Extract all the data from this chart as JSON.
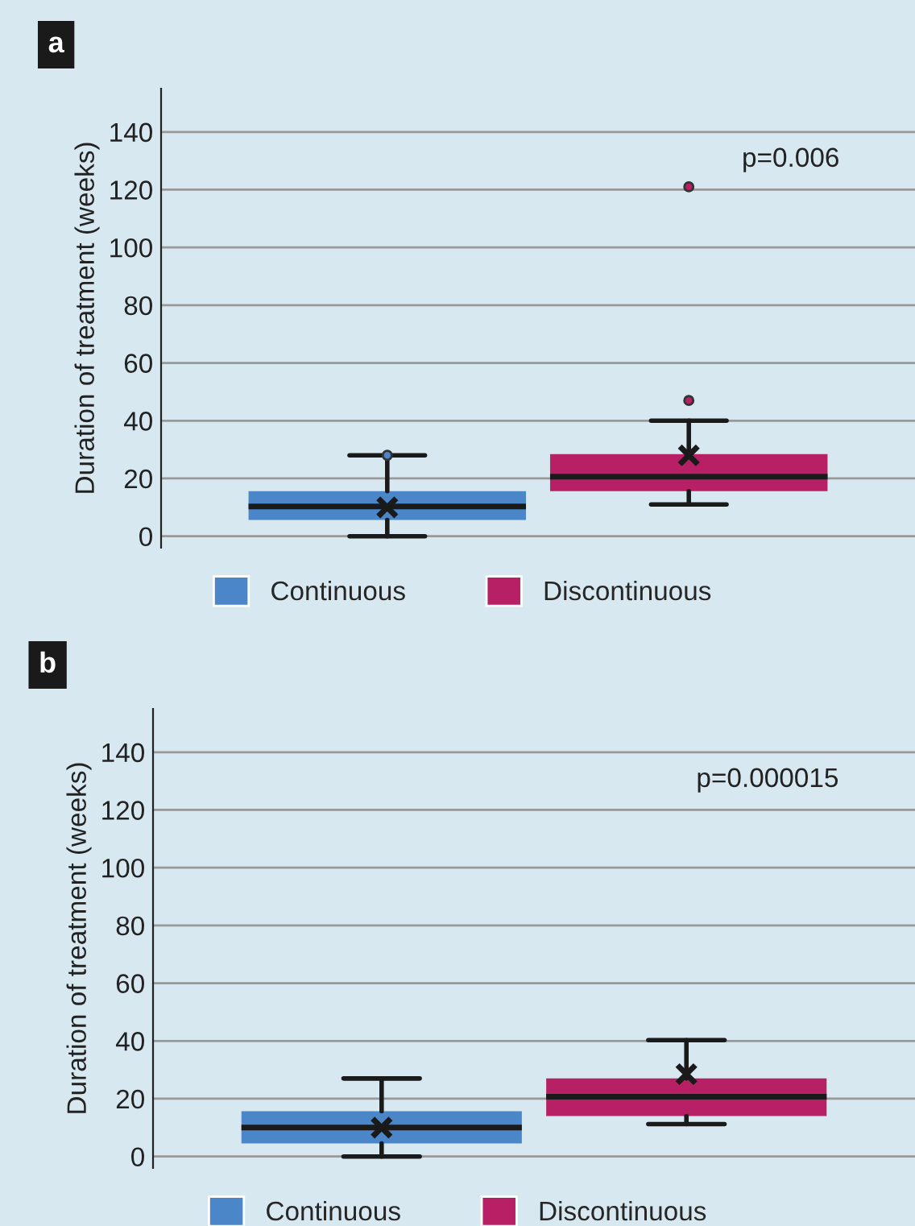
{
  "chart_data": [
    {
      "type": "box",
      "title": "a",
      "ylabel": "Duration of treatment (weeks)",
      "categories": [
        null
      ],
      "series": [
        {
          "name": "Continuous",
          "color": "#4a86c8",
          "boxes": [
            {
              "low": 0,
              "q1": 5.6,
              "median": 10.3,
              "q3": 15.6,
              "high": 28,
              "mean": 10,
              "outliers": [
                28
              ]
            }
          ]
        },
        {
          "name": "Discontinuous",
          "color": "#b72064",
          "boxes": [
            {
              "low": 11,
              "q1": 15.6,
              "median": 20.6,
              "q3": 28.4,
              "high": 40,
              "mean": 28,
              "outliers": [
                47,
                121
              ]
            }
          ]
        }
      ],
      "ylim": [
        -4,
        155
      ],
      "yticks": [
        0,
        20,
        40,
        60,
        80,
        100,
        120,
        140
      ],
      "grid": "y",
      "legend": "bottom",
      "annotations": [
        "p=0.006"
      ]
    },
    {
      "type": "box",
      "title": "b",
      "ylabel": "Duration of treatment (weeks)",
      "categories": [
        null
      ],
      "series": [
        {
          "name": "Continuous",
          "color": "#4a86c8",
          "boxes": [
            {
              "low": 0,
              "q1": 4.5,
              "median": 10,
              "q3": 15.7,
              "high": 27,
              "mean": 10
            }
          ]
        },
        {
          "name": "Discontinuous",
          "color": "#b72064",
          "boxes": [
            {
              "low": 11.2,
              "q1": 14,
              "median": 20.7,
              "q3": 27,
              "high": 40.3,
              "mean": 28.5
            }
          ]
        }
      ],
      "ylim": [
        -4,
        155
      ],
      "yticks": [
        0,
        20,
        40,
        60,
        80,
        100,
        120,
        140
      ],
      "grid": "y",
      "legend": "bottom",
      "annotations": [
        "p=0.000015"
      ]
    }
  ]
}
